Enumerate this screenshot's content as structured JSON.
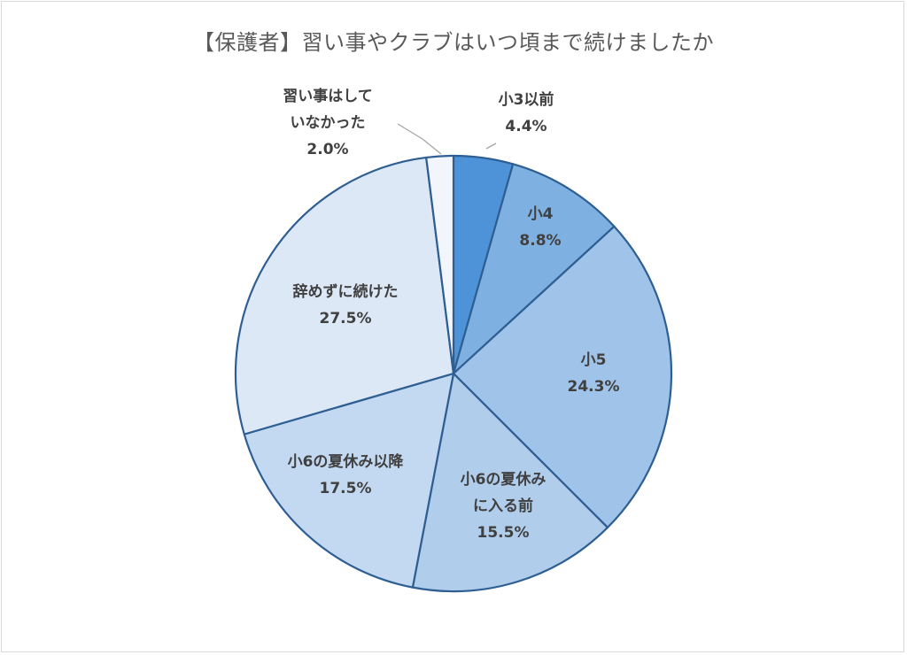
{
  "title": "【保護者】習い事やクラブはいつ頃まで続けましたか",
  "chart_data": {
    "type": "pie",
    "start": "12 o'clock",
    "direction": "clockwise",
    "slices": [
      {
        "label": [
          "小3以前"
        ],
        "value": 4.4,
        "value_text": "4.4%",
        "color": "#4e93d8"
      },
      {
        "label": [
          "小4"
        ],
        "value": 8.8,
        "value_text": "8.8%",
        "color": "#7eb0e2"
      },
      {
        "label": [
          "小5"
        ],
        "value": 24.3,
        "value_text": "24.3%",
        "color": "#9fc3e9"
      },
      {
        "label": [
          "小6の夏休み",
          "に入る前"
        ],
        "value": 15.5,
        "value_text": "15.5%",
        "color": "#b0cdec"
      },
      {
        "label": [
          "小6の夏休み以降"
        ],
        "value": 17.5,
        "value_text": "17.5%",
        "color": "#c3d9f1"
      },
      {
        "label": [
          "辞めずに続けた"
        ],
        "value": 27.5,
        "value_text": "27.5%",
        "color": "#dce8f6"
      },
      {
        "label": [
          "習い事はして",
          "いなかった"
        ],
        "value": 2.0,
        "value_text": "2.0%",
        "color": "#f2f6fc"
      }
    ],
    "edge_color": "#2e5e92"
  }
}
